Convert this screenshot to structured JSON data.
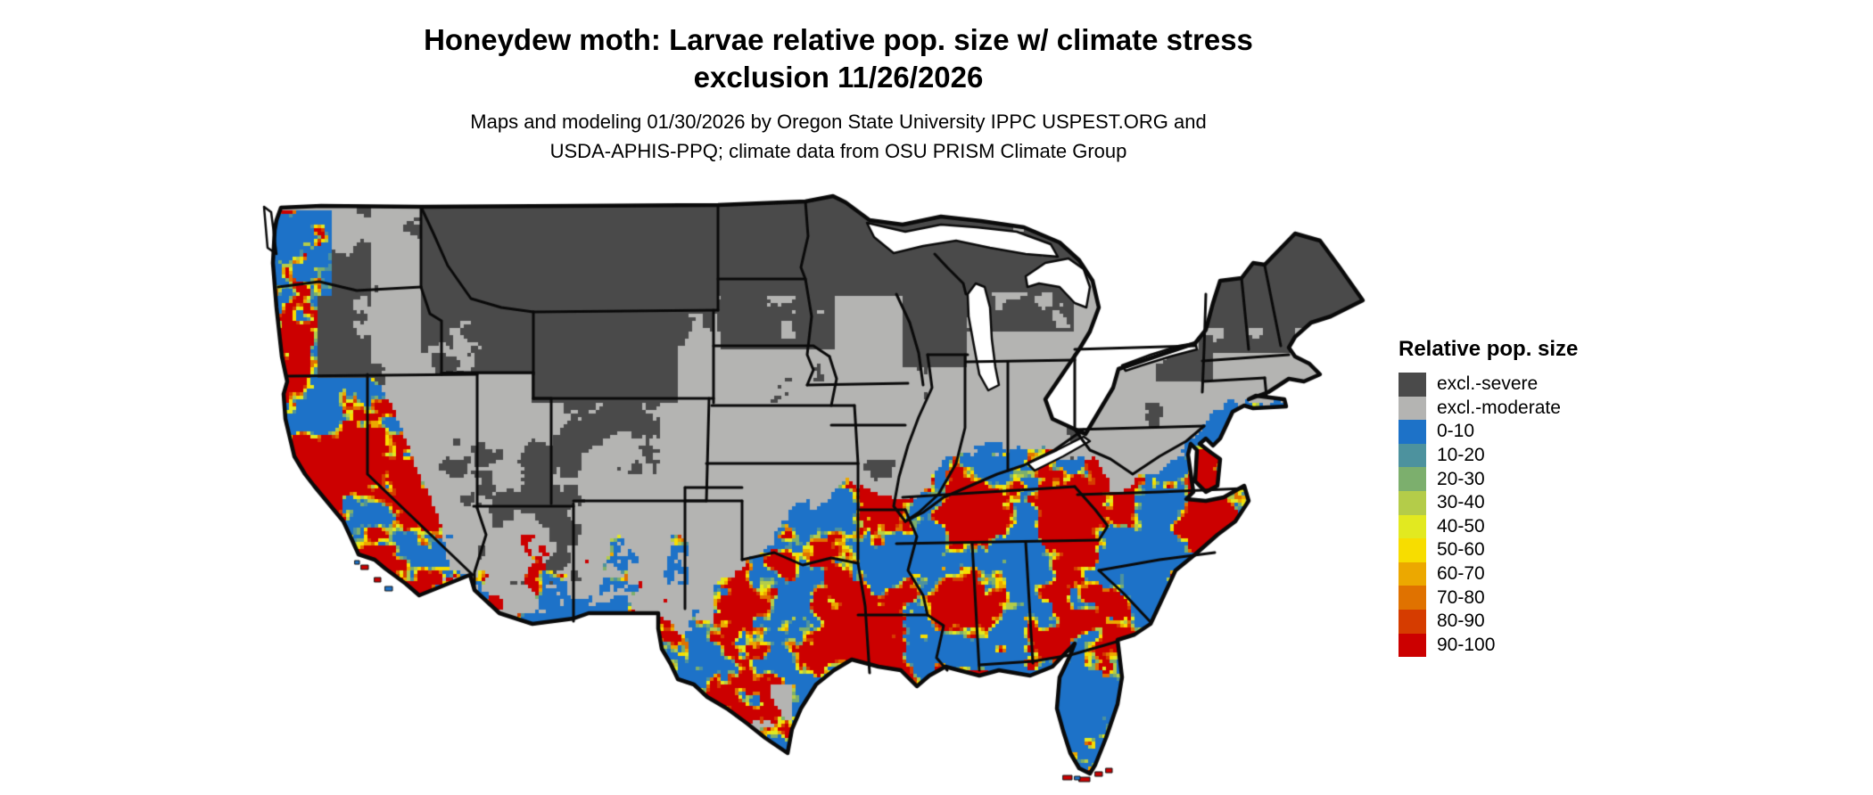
{
  "title": {
    "line1": "Honeydew moth: Larvae relative pop. size w/ climate stress",
    "line2": "exclusion 11/26/2026"
  },
  "subtitle": {
    "line1": "Maps and modeling 01/30/2026 by Oregon State University IPPC USPEST.ORG and",
    "line2": "USDA-APHIS-PPQ; climate data from OSU PRISM Climate Group"
  },
  "legend": {
    "title": "Relative pop. size",
    "items": [
      {
        "key": "excl-severe",
        "label": "excl.-severe",
        "color": "#4a4a4a"
      },
      {
        "key": "excl-moderate",
        "label": "excl.-moderate",
        "color": "#b4b4b2"
      },
      {
        "key": "b0",
        "label": "0-10",
        "color": "#1d72c8"
      },
      {
        "key": "b10",
        "label": "10-20",
        "color": "#4d929e"
      },
      {
        "key": "b20",
        "label": "20-30",
        "color": "#7caf6d"
      },
      {
        "key": "b30",
        "label": "30-40",
        "color": "#b4cc49"
      },
      {
        "key": "b40",
        "label": "40-50",
        "color": "#e2e920"
      },
      {
        "key": "b50",
        "label": "50-60",
        "color": "#f7dd00"
      },
      {
        "key": "b60",
        "label": "60-70",
        "color": "#eca800"
      },
      {
        "key": "b70",
        "label": "70-80",
        "color": "#e07200"
      },
      {
        "key": "b80",
        "label": "80-90",
        "color": "#d63c00"
      },
      {
        "key": "b90",
        "label": "90-100",
        "color": "#cc0000"
      }
    ]
  },
  "map": {
    "area": "Contiguous United States",
    "kind": "categorical raster map with state boundaries",
    "categories": [
      "excl.-severe",
      "excl.-moderate",
      "0-10",
      "10-20",
      "20-30",
      "30-40",
      "40-50",
      "50-60",
      "60-70",
      "70-80",
      "80-90",
      "90-100"
    ],
    "border_color": "#0a0a0a",
    "water_color": "#ffffff"
  }
}
